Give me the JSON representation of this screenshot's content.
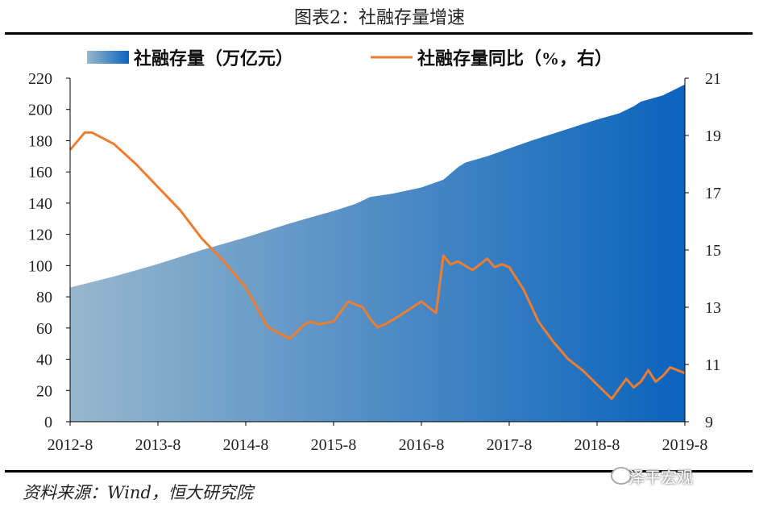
{
  "title": "图表2：社融存量增速",
  "source": "资料来源：Wind，恒大研究院",
  "watermark": "泽平宏观",
  "colors": {
    "area_start": "#97b7cd",
    "area_end": "#0a63bd",
    "line": "#ed7d31"
  },
  "chart_data": {
    "type": "area",
    "x_ticks": [
      "2012-8",
      "2013-8",
      "2014-8",
      "2015-8",
      "2016-8",
      "2017-8",
      "2018-8",
      "2019-8"
    ],
    "x_range": [
      "2012-8",
      "2019-8"
    ],
    "y_left_ticks": [
      0,
      20,
      40,
      60,
      80,
      100,
      120,
      140,
      160,
      180,
      200,
      220
    ],
    "y_left_range": [
      0,
      220
    ],
    "y_right_ticks": [
      9,
      11,
      13,
      15,
      17,
      19,
      21
    ],
    "y_right_range": [
      9,
      21
    ],
    "legend_position": "top",
    "series": [
      {
        "name": "社融存量（万亿元）",
        "type": "area",
        "axis": "left",
        "x": [
          "2012-8",
          "2012-11",
          "2013-2",
          "2013-5",
          "2013-8",
          "2013-11",
          "2014-2",
          "2014-5",
          "2014-8",
          "2014-11",
          "2015-2",
          "2015-5",
          "2015-8",
          "2015-11",
          "2016-1",
          "2016-4",
          "2016-8",
          "2016-11",
          "2017-1",
          "2017-2",
          "2017-5",
          "2017-8",
          "2017-11",
          "2018-2",
          "2018-5",
          "2018-8",
          "2018-11",
          "2019-1",
          "2019-2",
          "2019-5",
          "2019-8"
        ],
        "values": [
          86.0,
          89.5,
          93.0,
          97.0,
          101.0,
          105.5,
          110.0,
          114.0,
          118.0,
          122.5,
          127.0,
          131.0,
          135.0,
          139.5,
          144.0,
          146.0,
          150.0,
          155.0,
          163.0,
          166.0,
          170.0,
          175.0,
          180.0,
          184.5,
          189.0,
          193.5,
          197.5,
          202.0,
          205.0,
          209.0,
          216.0
        ]
      },
      {
        "name": "社融存量同比（%，右）",
        "type": "line",
        "axis": "right",
        "x": [
          "2012-8",
          "2012-10",
          "2012-11",
          "2013-2",
          "2013-5",
          "2013-8",
          "2013-11",
          "2014-2",
          "2014-5",
          "2014-8",
          "2014-11",
          "2015-2",
          "2015-4",
          "2015-5",
          "2015-6",
          "2015-8",
          "2015-10",
          "2015-12",
          "2016-1",
          "2016-2",
          "2016-3",
          "2016-5",
          "2016-8",
          "2016-10",
          "2016-11",
          "2016-12",
          "2017-1",
          "2017-3",
          "2017-5",
          "2017-6",
          "2017-7",
          "2017-8",
          "2017-10",
          "2017-12",
          "2018-2",
          "2018-4",
          "2018-6",
          "2018-8",
          "2018-10",
          "2018-12",
          "2019-1",
          "2019-2",
          "2019-3",
          "2019-4",
          "2019-5",
          "2019-6",
          "2019-8"
        ],
        "values": [
          18.5,
          19.1,
          19.1,
          18.7,
          18.0,
          17.2,
          16.4,
          15.4,
          14.6,
          13.7,
          12.3,
          11.9,
          12.4,
          12.5,
          12.4,
          12.5,
          13.2,
          13.0,
          12.6,
          12.3,
          12.4,
          12.7,
          13.2,
          12.8,
          14.8,
          14.5,
          14.6,
          14.3,
          14.7,
          14.4,
          14.5,
          14.4,
          13.6,
          12.5,
          11.8,
          11.2,
          10.8,
          10.3,
          9.8,
          10.5,
          10.2,
          10.4,
          10.8,
          10.4,
          10.6,
          10.9,
          10.7
        ]
      }
    ]
  }
}
